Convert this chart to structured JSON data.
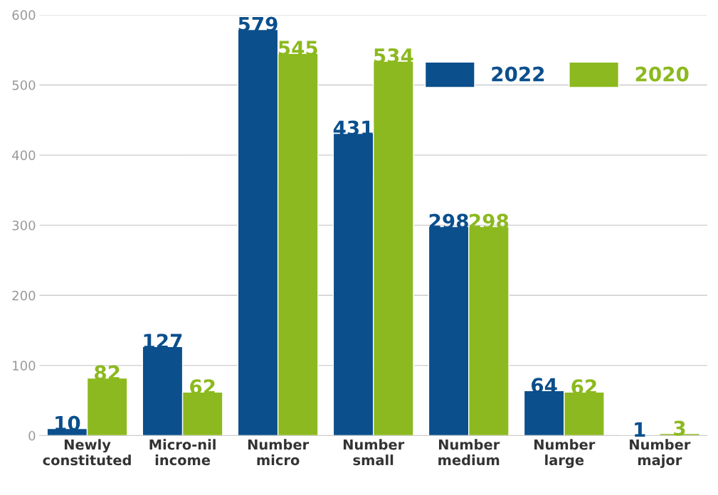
{
  "chart_data": {
    "type": "bar",
    "categories": [
      "Newly\nconstituted",
      "Micro-nil\nincome",
      "Number\nmicro",
      "Number\nsmall",
      "Number\nmedium",
      "Number\nlarge",
      "Number\nmajor"
    ],
    "series": [
      {
        "name": "2022",
        "color": "#0b4f8c",
        "values": [
          10,
          127,
          579,
          431,
          298,
          64,
          1
        ]
      },
      {
        "name": "2020",
        "color": "#8cb91f",
        "values": [
          82,
          62,
          545,
          534,
          298,
          62,
          3
        ]
      }
    ],
    "ylim": [
      0,
      600
    ],
    "yticks": [
      0,
      100,
      200,
      300,
      400,
      500,
      600
    ],
    "grid": "y",
    "legend": "top right",
    "data_labels": true
  }
}
